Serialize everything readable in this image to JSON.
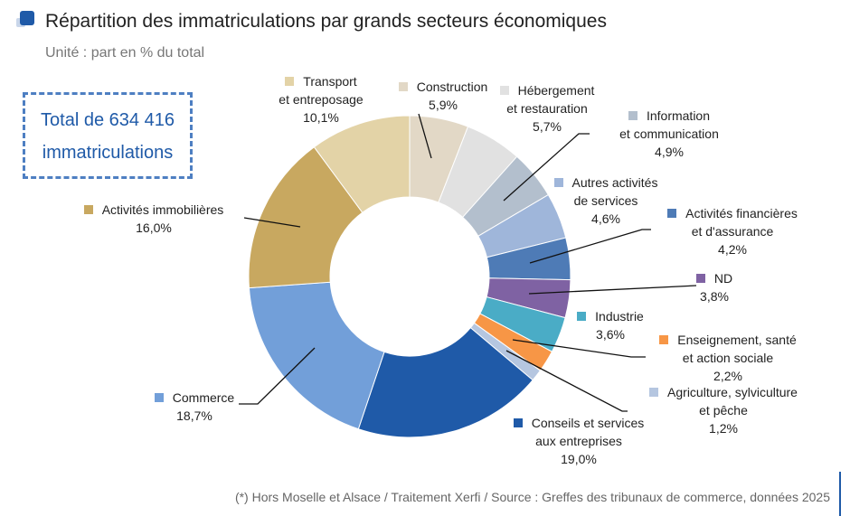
{
  "header": {
    "title": "Répartition des immatriculations par grands secteurs économiques",
    "subtitle": "Unité : part en % du total"
  },
  "total_box": {
    "line1": "Total de 634 416",
    "line2": "immatriculations"
  },
  "source": "(*) Hors Moselle et Alsace / Traitement Xerfi / Source : Greffes des tribunaux de commerce, données 2025",
  "chart_data": {
    "type": "pie",
    "donut": true,
    "title": "Répartition des immatriculations par grands secteurs économiques",
    "unit": "%",
    "slices": [
      {
        "name": "Construction",
        "lines": [
          "Construction"
        ],
        "value": 5.9,
        "label": "5,9%",
        "color": "#e2d8c6"
      },
      {
        "name": "Hébergement et restauration",
        "lines": [
          "Hébergement",
          "et restauration"
        ],
        "value": 5.7,
        "label": "5,7%",
        "color": "#e1e1e1"
      },
      {
        "name": "Information et communication",
        "lines": [
          "Information",
          "et communication"
        ],
        "value": 4.9,
        "label": "4,9%",
        "color": "#b3bfcd"
      },
      {
        "name": "Autres activités de services",
        "lines": [
          "Autres activités",
          "de services"
        ],
        "value": 4.6,
        "label": "4,6%",
        "color": "#9fb6da"
      },
      {
        "name": "Activités financières et d'assurance",
        "lines": [
          "Activités financières",
          "et d'assurance"
        ],
        "value": 4.2,
        "label": "4,2%",
        "color": "#4e7bb6"
      },
      {
        "name": "ND",
        "lines": [
          "ND"
        ],
        "value": 3.8,
        "label": "3,8%",
        "color": "#7f62a3"
      },
      {
        "name": "Industrie",
        "lines": [
          "Industrie"
        ],
        "value": 3.6,
        "label": "3,6%",
        "color": "#4aacc6"
      },
      {
        "name": "Enseignement, santé et action sociale",
        "lines": [
          "Enseignement, santé",
          "et action sociale"
        ],
        "value": 2.2,
        "label": "2,2%",
        "color": "#f79646"
      },
      {
        "name": "Agriculture, sylviculture et pêche",
        "lines": [
          "Agriculture, sylviculture",
          "et pêche"
        ],
        "value": 1.2,
        "label": "1,2%",
        "color": "#b5c6e0"
      },
      {
        "name": "Conseils et services aux entreprises",
        "lines": [
          "Conseils et services",
          "aux entreprises"
        ],
        "value": 19.0,
        "label": "19,0%",
        "color": "#1f5aa8"
      },
      {
        "name": "Commerce",
        "lines": [
          "Commerce"
        ],
        "value": 18.7,
        "label": "18,7%",
        "color": "#729fd9"
      },
      {
        "name": "Activités immobilières",
        "lines": [
          "Activités immobilières"
        ],
        "value": 16.0,
        "label": "16,0%",
        "color": "#c8a860"
      },
      {
        "name": "Transport et entreposage",
        "lines": [
          "Transport",
          "et entreposage"
        ],
        "value": 10.1,
        "label": "10,1%",
        "color": "#e3d3a7"
      }
    ]
  }
}
